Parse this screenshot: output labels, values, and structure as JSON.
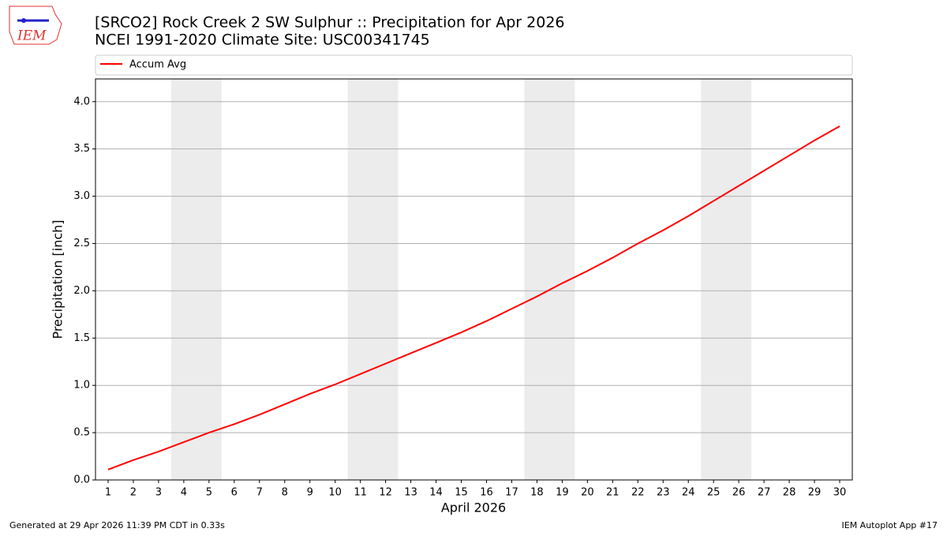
{
  "logo_text": "IEM",
  "footer_left": "Generated at 29 Apr 2026 11:39 PM CDT in 0.33s",
  "footer_right": "IEM Autoplot App #17",
  "chart_data": {
    "type": "line",
    "title": "[SRCO2] Rock Creek 2 SW Sulphur :: Precipitation for Apr 2026",
    "subtitle": "NCEI 1991-2020 Climate Site: USC00341745",
    "x_label": "April 2026",
    "y_label": "Precipitation [inch]",
    "x": [
      1,
      2,
      3,
      4,
      5,
      6,
      7,
      8,
      9,
      10,
      11,
      12,
      13,
      14,
      15,
      16,
      17,
      18,
      19,
      20,
      21,
      22,
      23,
      24,
      25,
      26,
      27,
      28,
      29,
      30
    ],
    "series": [
      {
        "name": "Accum Avg",
        "color": "#ff0000",
        "values": [
          0.11,
          0.21,
          0.3,
          0.4,
          0.5,
          0.59,
          0.69,
          0.8,
          0.91,
          1.01,
          1.12,
          1.23,
          1.34,
          1.45,
          1.56,
          1.68,
          1.81,
          1.94,
          2.08,
          2.21,
          2.35,
          2.5,
          2.64,
          2.79,
          2.95,
          3.11,
          3.27,
          3.43,
          3.59,
          3.74
        ]
      }
    ],
    "weekend_spans": [
      [
        3.5,
        5.5
      ],
      [
        10.5,
        12.5
      ],
      [
        17.5,
        19.5
      ],
      [
        24.5,
        26.5
      ]
    ],
    "span_color": "#ececec",
    "xlim": [
      0.5,
      30.5
    ],
    "xticks": [
      1,
      2,
      3,
      4,
      5,
      6,
      7,
      8,
      9,
      10,
      11,
      12,
      13,
      14,
      15,
      16,
      17,
      18,
      19,
      20,
      21,
      22,
      23,
      24,
      25,
      26,
      27,
      28,
      29,
      30
    ],
    "ylim": [
      0,
      4.24
    ],
    "yticks": [
      {
        "value": 0,
        "label": "0.0"
      },
      0.5,
      {
        "value": 1,
        "label": "1.0"
      },
      1.5,
      {
        "value": 2,
        "label": "2.0"
      },
      2.5,
      {
        "value": 3,
        "label": "3.0"
      },
      3.5,
      {
        "value": 4,
        "label": "4.0"
      }
    ],
    "grid": true,
    "legend": "top"
  }
}
